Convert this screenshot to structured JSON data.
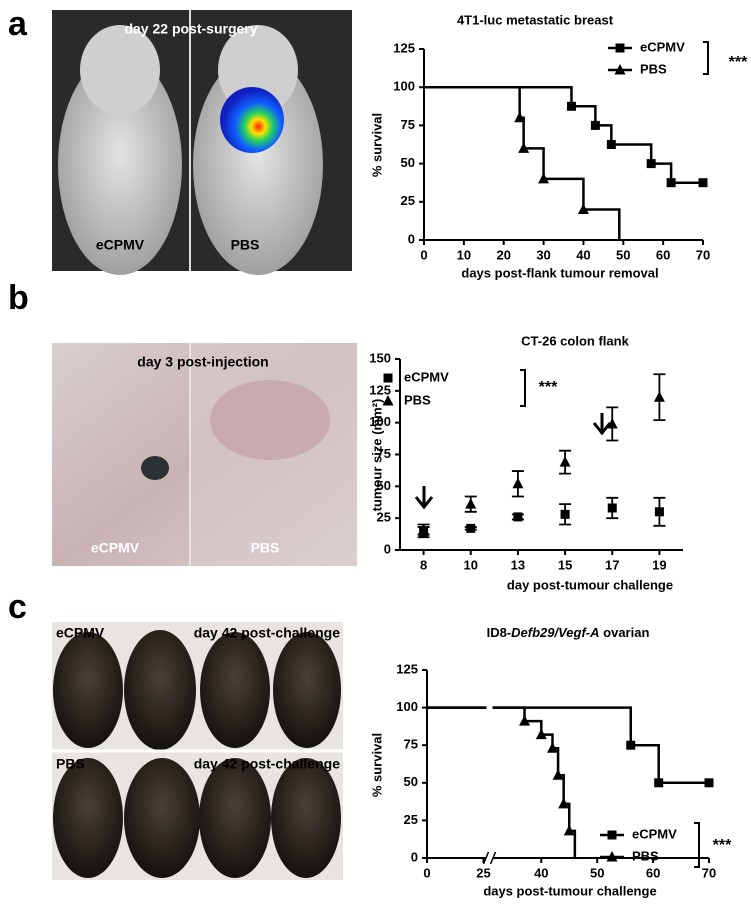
{
  "panels": [
    {
      "letter": "a",
      "photo_texts": [
        "day 22 post-surgery",
        "eCPMV",
        "PBS"
      ]
    },
    {
      "letter": "b",
      "photo_texts": [
        "day 3 post-injection",
        "eCPMV",
        "PBS"
      ]
    },
    {
      "letter": "c",
      "photo_texts": [
        "eCPMV",
        "day 42 post-challenge",
        "PBS",
        "day 42 post-challenge"
      ]
    }
  ],
  "chart_data": [
    {
      "type": "step",
      "title": "4T1-luc metastatic breast",
      "xlabel": "days post-flank tumour removal",
      "ylabel": "% survival",
      "xlim": [
        0,
        70
      ],
      "xticks": [
        0,
        10,
        20,
        30,
        40,
        50,
        60,
        70
      ],
      "ylim": [
        0,
        125
      ],
      "yticks": [
        0,
        25,
        50,
        75,
        100,
        125
      ],
      "series": [
        {
          "name": "eCPMV",
          "color": "#000000",
          "marker": "square",
          "x": [
            0,
            37,
            43,
            47,
            57,
            62,
            70
          ],
          "values": [
            100,
            87.5,
            75,
            62.5,
            50,
            37.5,
            37.5
          ]
        },
        {
          "name": "PBS",
          "color": "#000000",
          "marker": "triangle",
          "x": [
            0,
            24,
            25,
            30,
            40,
            49
          ],
          "values": [
            100,
            80,
            60,
            40,
            20,
            0
          ]
        }
      ],
      "annotation": "***",
      "legend": "upper right"
    },
    {
      "type": "scatter",
      "title": "CT-26 colon flank",
      "xlabel": "day post-tumour challenge",
      "ylabel": "tumour size (mm²)",
      "categories": [
        "8",
        "10",
        "13",
        "15",
        "17",
        "19"
      ],
      "ylim": [
        0,
        150
      ],
      "yticks": [
        0,
        25,
        50,
        75,
        100,
        125,
        150
      ],
      "series": [
        {
          "name": "eCPMV",
          "color": "#000000",
          "marker": "square",
          "values": [
            14,
            17,
            26,
            28,
            33,
            30
          ],
          "errors": [
            4,
            1,
            2,
            8,
            8,
            11
          ]
        },
        {
          "name": "PBS",
          "color": "#000000",
          "marker": "triangle",
          "values": [
            16,
            36,
            52,
            69,
            99,
            120
          ],
          "errors": [
            4,
            6,
            10,
            9,
            13,
            18
          ]
        }
      ],
      "annotation": "***",
      "legend": "upper left"
    },
    {
      "type": "step",
      "title_parts": [
        {
          "text": "ID8-"
        },
        {
          "text": "Defb29/Vegf-A",
          "italic": true
        },
        {
          "text": " ovarian"
        }
      ],
      "xlabel": "days post-tumour challenge",
      "ylabel": "% survival",
      "xlim": [
        [
          0,
          27
        ],
        [
          31,
          70
        ]
      ],
      "xticks": [
        0,
        25,
        40,
        50,
        60,
        70
      ],
      "ylim": [
        0,
        125
      ],
      "yticks": [
        0,
        25,
        50,
        75,
        100,
        125
      ],
      "series": [
        {
          "name": "eCPMV",
          "color": "#000000",
          "marker": "square",
          "x": [
            0,
            56,
            61,
            70
          ],
          "values": [
            100,
            75,
            50,
            50
          ]
        },
        {
          "name": "PBS",
          "color": "#000000",
          "marker": "triangle",
          "x": [
            0,
            37,
            40,
            42,
            43,
            44,
            45,
            46
          ],
          "values": [
            100,
            91,
            82,
            73,
            55,
            36,
            18,
            0
          ]
        }
      ],
      "annotation": "***",
      "legend": "lower right"
    }
  ]
}
